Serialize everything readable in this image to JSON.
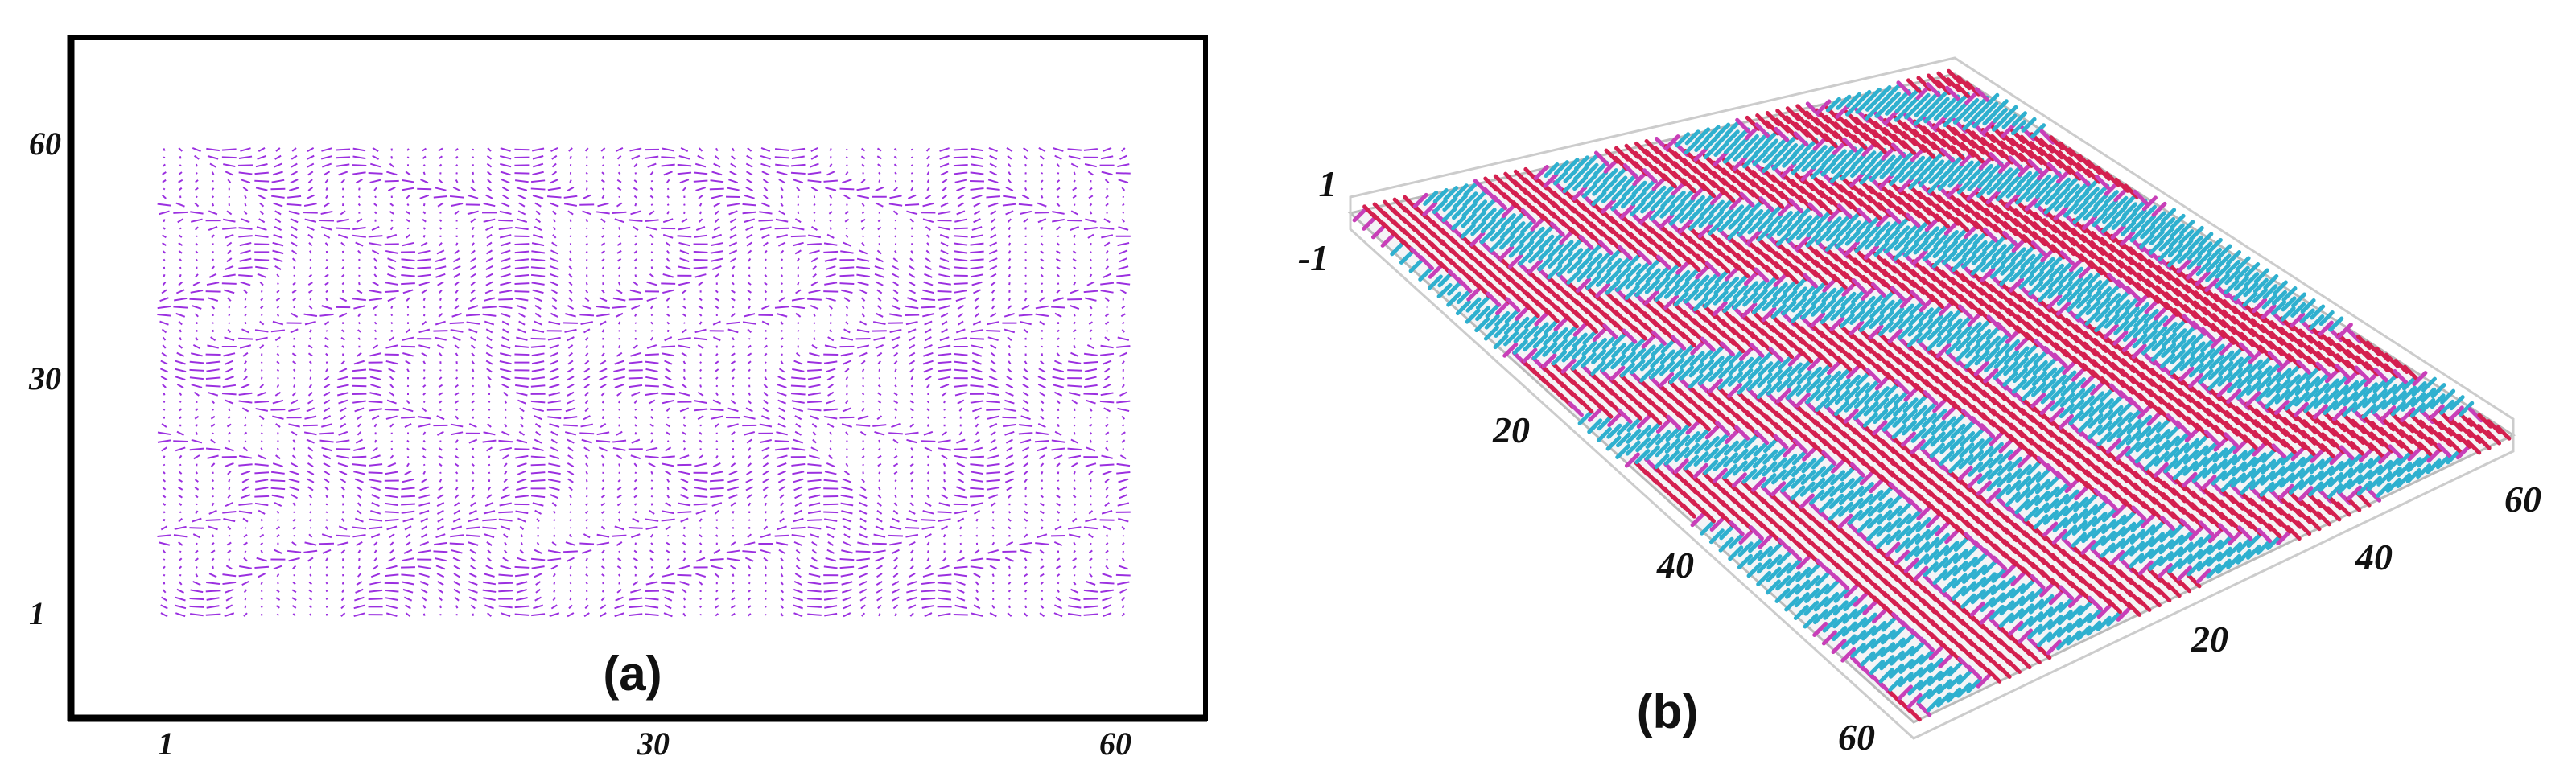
{
  "panel_a": {
    "label": "(a)",
    "x_ticks": [
      "1",
      "30",
      "60"
    ],
    "y_ticks": [
      "60",
      "30",
      "1"
    ]
  },
  "panel_b": {
    "label": "(b)",
    "z_ticks": [
      "1",
      "-1"
    ],
    "left_ticks": [
      "20",
      "40",
      "60"
    ],
    "right_ticks": [
      "60",
      "40",
      "20"
    ]
  }
}
